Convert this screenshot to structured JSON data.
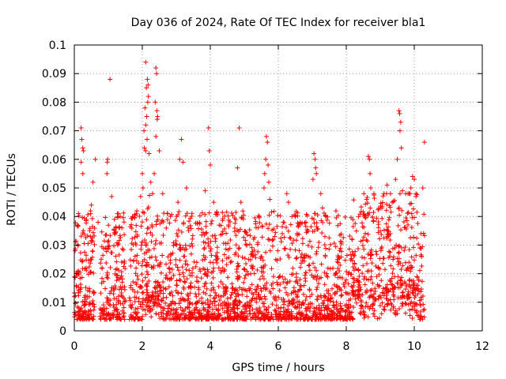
{
  "chart_data": {
    "type": "scatter",
    "title": "Day 036 of 2024, Rate Of TEC Index for receiver bla1",
    "xlabel": "GPS time / hours",
    "ylabel": "ROTI / TECUs",
    "xlim": [
      0,
      12
    ],
    "ylim": [
      0,
      0.1
    ],
    "xticks": [
      0,
      2,
      4,
      6,
      8,
      10,
      12
    ],
    "xtick_labels": [
      "0",
      "2",
      "4",
      "6",
      "8",
      "10",
      "12"
    ],
    "yticks": [
      0,
      0.01,
      0.02,
      0.03,
      0.04,
      0.05,
      0.06,
      0.07,
      0.08,
      0.09,
      0.1
    ],
    "ytick_labels": [
      "0",
      "0.01",
      "0.02",
      "0.03",
      "0.04",
      "0.05",
      "0.06",
      "0.07",
      "0.08",
      "0.09",
      "0.1"
    ],
    "grid": true,
    "marker": "+",
    "color": "#ff0000",
    "data_coverage_hours": [
      0.0,
      10.3
    ],
    "series": [
      {
        "name": "ROTI",
        "points": [
          [
            0.2,
            0.071
          ],
          [
            0.22,
            0.067
          ],
          [
            0.25,
            0.064
          ],
          [
            0.27,
            0.063
          ],
          [
            0.2,
            0.059
          ],
          [
            0.25,
            0.055
          ],
          [
            0.62,
            0.06
          ],
          [
            0.55,
            0.052
          ],
          [
            0.5,
            0.044
          ],
          [
            0.48,
            0.041
          ],
          [
            0.7,
            0.038
          ],
          [
            0.98,
            0.06
          ],
          [
            0.97,
            0.059
          ],
          [
            0.96,
            0.055
          ],
          [
            1.05,
            0.088
          ],
          [
            1.1,
            0.047
          ],
          [
            1.3,
            0.041
          ],
          [
            1.35,
            0.04
          ],
          [
            1.4,
            0.036
          ],
          [
            2.1,
            0.094
          ],
          [
            2.15,
            0.088
          ],
          [
            2.17,
            0.086
          ],
          [
            2.12,
            0.085
          ],
          [
            2.18,
            0.082
          ],
          [
            2.16,
            0.08
          ],
          [
            2.08,
            0.078
          ],
          [
            2.13,
            0.075
          ],
          [
            2.1,
            0.072
          ],
          [
            2.05,
            0.07
          ],
          [
            2.14,
            0.067
          ],
          [
            2.06,
            0.064
          ],
          [
            2.1,
            0.063
          ],
          [
            2.2,
            0.062
          ],
          [
            2.0,
            0.055
          ],
          [
            2.02,
            0.05
          ],
          [
            1.95,
            0.047
          ],
          [
            2.25,
            0.052
          ],
          [
            2.4,
            0.092
          ],
          [
            2.42,
            0.09
          ],
          [
            2.38,
            0.08
          ],
          [
            2.43,
            0.077
          ],
          [
            2.45,
            0.075
          ],
          [
            2.44,
            0.074
          ],
          [
            2.4,
            0.068
          ],
          [
            2.5,
            0.063
          ],
          [
            2.35,
            0.055
          ],
          [
            2.6,
            0.048
          ],
          [
            3.15,
            0.067
          ],
          [
            3.1,
            0.06
          ],
          [
            3.2,
            0.059
          ],
          [
            3.3,
            0.05
          ],
          [
            3.05,
            0.045
          ],
          [
            3.95,
            0.071
          ],
          [
            3.97,
            0.063
          ],
          [
            4.0,
            0.058
          ],
          [
            4.1,
            0.045
          ],
          [
            3.85,
            0.049
          ],
          [
            4.85,
            0.071
          ],
          [
            4.8,
            0.057
          ],
          [
            4.9,
            0.045
          ],
          [
            5.65,
            0.068
          ],
          [
            5.68,
            0.066
          ],
          [
            5.63,
            0.06
          ],
          [
            5.7,
            0.058
          ],
          [
            5.6,
            0.055
          ],
          [
            5.72,
            0.052
          ],
          [
            5.58,
            0.05
          ],
          [
            5.75,
            0.046
          ],
          [
            6.25,
            0.048
          ],
          [
            6.3,
            0.045
          ],
          [
            6.5,
            0.04
          ],
          [
            7.05,
            0.062
          ],
          [
            7.08,
            0.06
          ],
          [
            7.1,
            0.057
          ],
          [
            7.12,
            0.055
          ],
          [
            7.02,
            0.053
          ],
          [
            7.25,
            0.048
          ],
          [
            7.3,
            0.043
          ],
          [
            8.65,
            0.061
          ],
          [
            8.68,
            0.06
          ],
          [
            8.7,
            0.055
          ],
          [
            8.72,
            0.05
          ],
          [
            8.6,
            0.046
          ],
          [
            9.55,
            0.077
          ],
          [
            9.57,
            0.076
          ],
          [
            9.6,
            0.073
          ],
          [
            9.58,
            0.07
          ],
          [
            9.62,
            0.064
          ],
          [
            9.5,
            0.06
          ],
          [
            9.45,
            0.053
          ],
          [
            9.65,
            0.049
          ],
          [
            9.2,
            0.051
          ],
          [
            9.3,
            0.048
          ],
          [
            9.35,
            0.045
          ],
          [
            9.95,
            0.054
          ],
          [
            10.0,
            0.053
          ],
          [
            9.9,
            0.05
          ],
          [
            10.05,
            0.047
          ],
          [
            10.3,
            0.066
          ],
          [
            10.25,
            0.05
          ],
          [
            10.2,
            0.034
          ]
        ]
      }
    ]
  }
}
